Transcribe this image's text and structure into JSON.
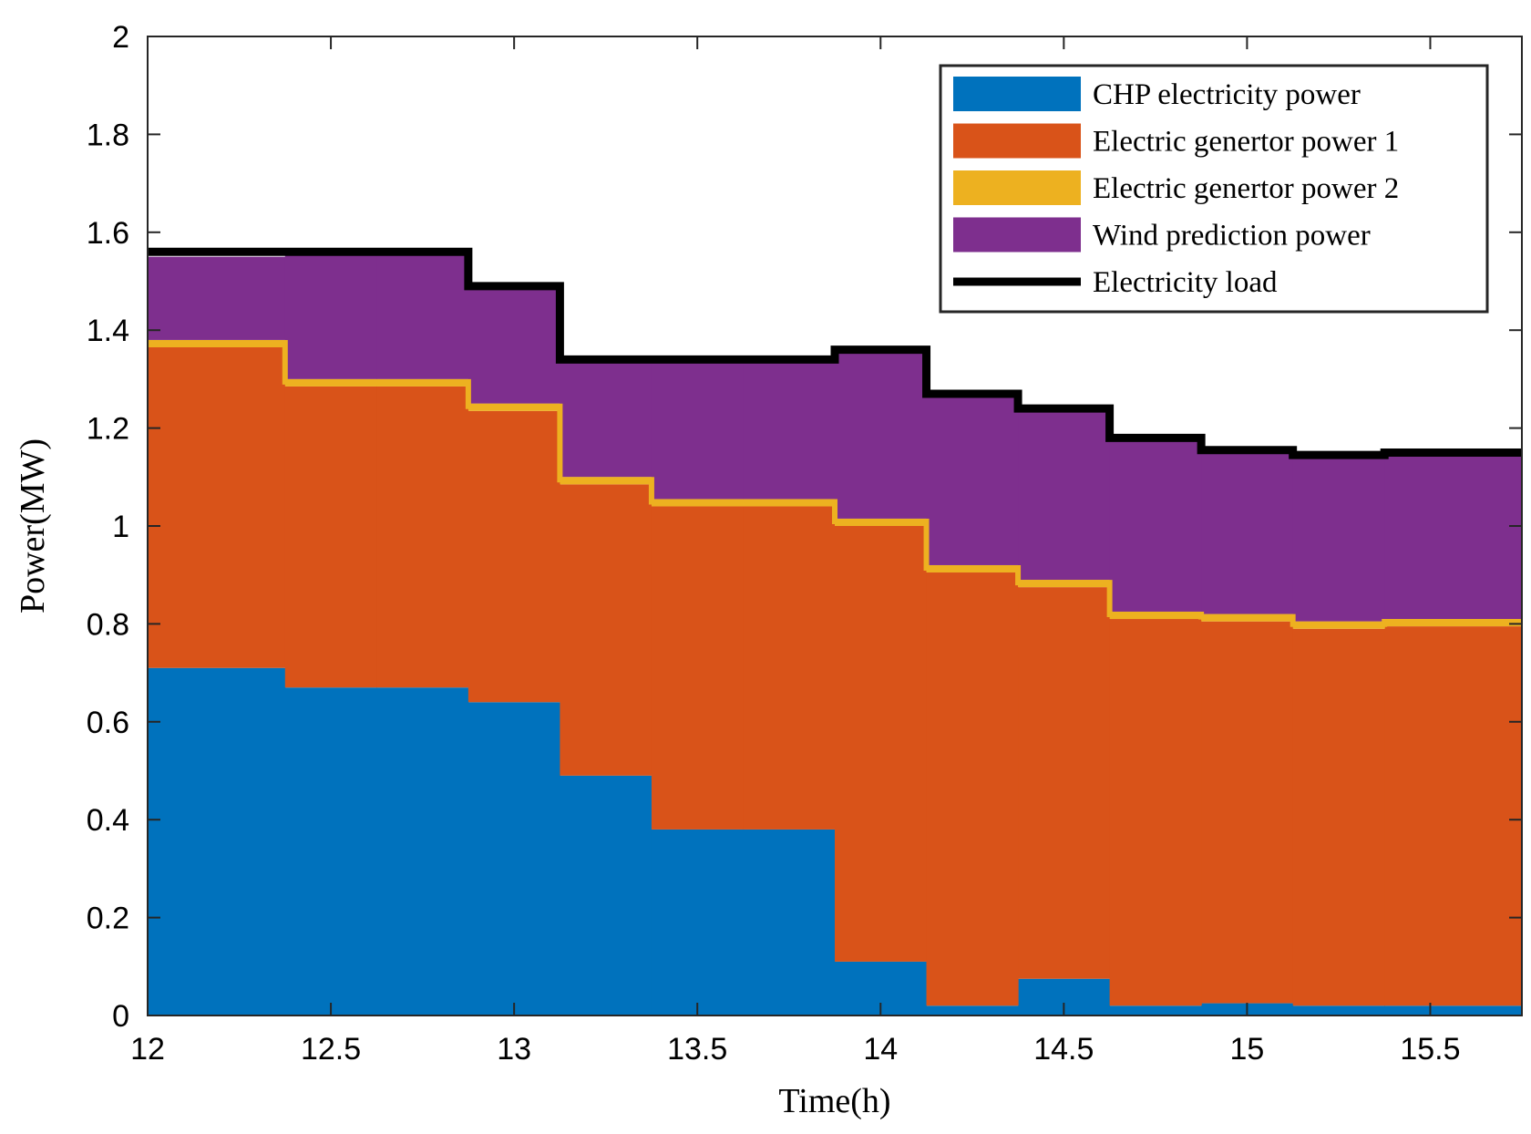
{
  "chart_data": {
    "type": "area",
    "subtype": "stacked-step",
    "title": "",
    "xlabel": "Time(h)",
    "ylabel": "Power(MW)",
    "xlim": [
      12,
      15.75
    ],
    "ylim": [
      0,
      2
    ],
    "xticks": [
      12,
      12.5,
      13,
      13.5,
      14,
      14.5,
      15,
      15.5
    ],
    "xtick_labels": [
      "12",
      "12.5",
      "13",
      "13.5",
      "14",
      "14.5",
      "15",
      "15.5"
    ],
    "yticks": [
      0,
      0.2,
      0.4,
      0.6,
      0.8,
      1,
      1.2,
      1.4,
      1.6,
      1.8,
      2
    ],
    "ytick_labels": [
      "0",
      "0.2",
      "0.4",
      "0.6",
      "0.8",
      "1",
      "1.2",
      "1.4",
      "1.6",
      "1.8",
      "2"
    ],
    "x_edges": [
      12,
      12.375,
      12.625,
      12.875,
      13.125,
      13.375,
      13.625,
      13.875,
      14.125,
      14.375,
      14.625,
      14.875,
      15.125,
      15.375,
      15.75
    ],
    "legend_position": "top-right",
    "series": [
      {
        "name": "CHP electricity power",
        "color": "#0072BD",
        "values": [
          0.71,
          0.67,
          0.67,
          0.64,
          0.49,
          0.38,
          0.38,
          0.11,
          0.02,
          0.075,
          0.02,
          0.025,
          0.02,
          0.02
        ]
      },
      {
        "name": "Electric genertor power 1",
        "color": "#D95319",
        "values": [
          0.655,
          0.615,
          0.615,
          0.595,
          0.595,
          0.66,
          0.66,
          0.89,
          0.885,
          0.8,
          0.79,
          0.78,
          0.77,
          0.775
        ]
      },
      {
        "name": "Electric genertor power 2",
        "color": "#EDB120",
        "values": [
          0.015,
          0.015,
          0.015,
          0.015,
          0.015,
          0.015,
          0.015,
          0.015,
          0.015,
          0.015,
          0.015,
          0.015,
          0.015,
          0.015
        ]
      },
      {
        "name": "Wind prediction power",
        "color": "#7E2F8E",
        "values": [
          0.17,
          0.26,
          0.26,
          0.24,
          0.24,
          0.285,
          0.285,
          0.345,
          0.345,
          0.35,
          0.355,
          0.335,
          0.34,
          0.34
        ]
      }
    ],
    "load": {
      "name": "Electricity load",
      "color": "#000000",
      "values": [
        1.56,
        1.56,
        1.56,
        1.49,
        1.34,
        1.34,
        1.34,
        1.36,
        1.27,
        1.24,
        1.18,
        1.155,
        1.145,
        1.15
      ]
    }
  }
}
